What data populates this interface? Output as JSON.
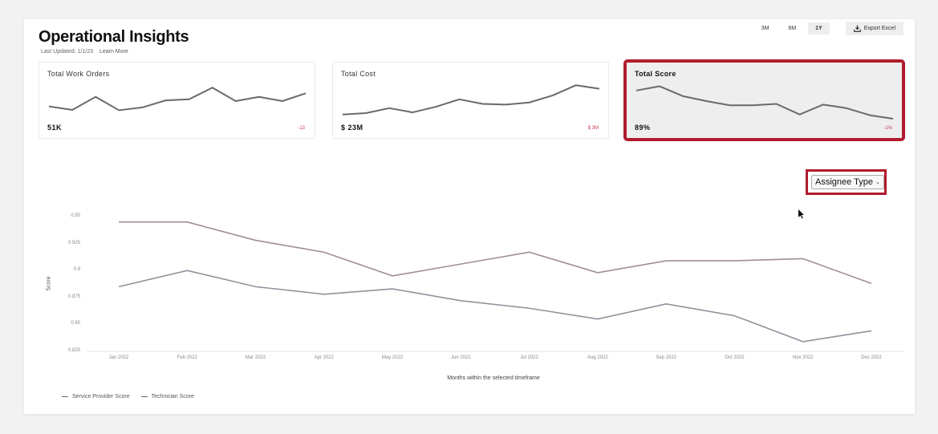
{
  "header": {
    "title": "Operational Insights",
    "last_updated": "Last Updated: 1/1/23",
    "learn_more": "Learn More"
  },
  "toolbar": {
    "ranges": [
      {
        "label": "3M",
        "active": false
      },
      {
        "label": "6M",
        "active": false
      },
      {
        "label": "1Y",
        "active": true
      }
    ],
    "export_label": "Export Excel",
    "export_icon": "download-icon"
  },
  "kpis": [
    {
      "title": "Total Work Orders",
      "value": "51K",
      "delta": "-13",
      "selected": false,
      "spark": [
        0.35,
        0.25,
        0.62,
        0.24,
        0.32,
        0.52,
        0.55,
        0.88,
        0.5,
        0.62,
        0.5,
        0.72
      ]
    },
    {
      "title": "Total Cost",
      "value": "$ 23M",
      "delta": "$ 3M",
      "selected": false,
      "spark": [
        0.12,
        0.16,
        0.3,
        0.18,
        0.34,
        0.55,
        0.42,
        0.4,
        0.46,
        0.66,
        0.95,
        0.85
      ]
    },
    {
      "title": "Total Score",
      "value": "89%",
      "delta": "-1%",
      "selected": true,
      "spark": [
        0.8,
        0.92,
        0.64,
        0.5,
        0.38,
        0.38,
        0.42,
        0.12,
        0.4,
        0.3,
        0.1,
        0.0
      ]
    }
  ],
  "filter": {
    "dropdown_label": "Assignee Type",
    "chevron_icon": "chevron-down-icon"
  },
  "colors": {
    "highlight": "#b01c2e",
    "line": "#8a8a8a",
    "delta": "#c03a4a"
  },
  "chart_data": {
    "type": "line",
    "title": "",
    "xlabel": "Months within the selected timeframe",
    "ylabel": "Score",
    "ylim": [
      0.825,
      0.95
    ],
    "yticks": [
      "0.95",
      "0.925",
      "0.9",
      "0.875",
      "0.85",
      "0.825"
    ],
    "grid": false,
    "legend_position": "bottom-left",
    "categories": [
      "Jan 2022",
      "Feb 2022",
      "Mar 2022",
      "Apr 2022",
      "May 2022",
      "Jun 2022",
      "Jul 2022",
      "Aug 2022",
      "Sep 2022",
      "Oct 2022",
      "Nov 2022",
      "Dec 2022"
    ],
    "series": [
      {
        "name": "Service Provider Score",
        "values": [
          0.945,
          0.945,
          0.928,
          0.917,
          0.895,
          0.906,
          0.917,
          0.898,
          0.909,
          0.909,
          0.911,
          0.888
        ]
      },
      {
        "name": "Technician Score",
        "values": [
          0.885,
          0.9,
          0.885,
          0.878,
          0.883,
          0.872,
          0.865,
          0.855,
          0.869,
          0.858,
          0.834,
          0.844
        ]
      }
    ]
  }
}
